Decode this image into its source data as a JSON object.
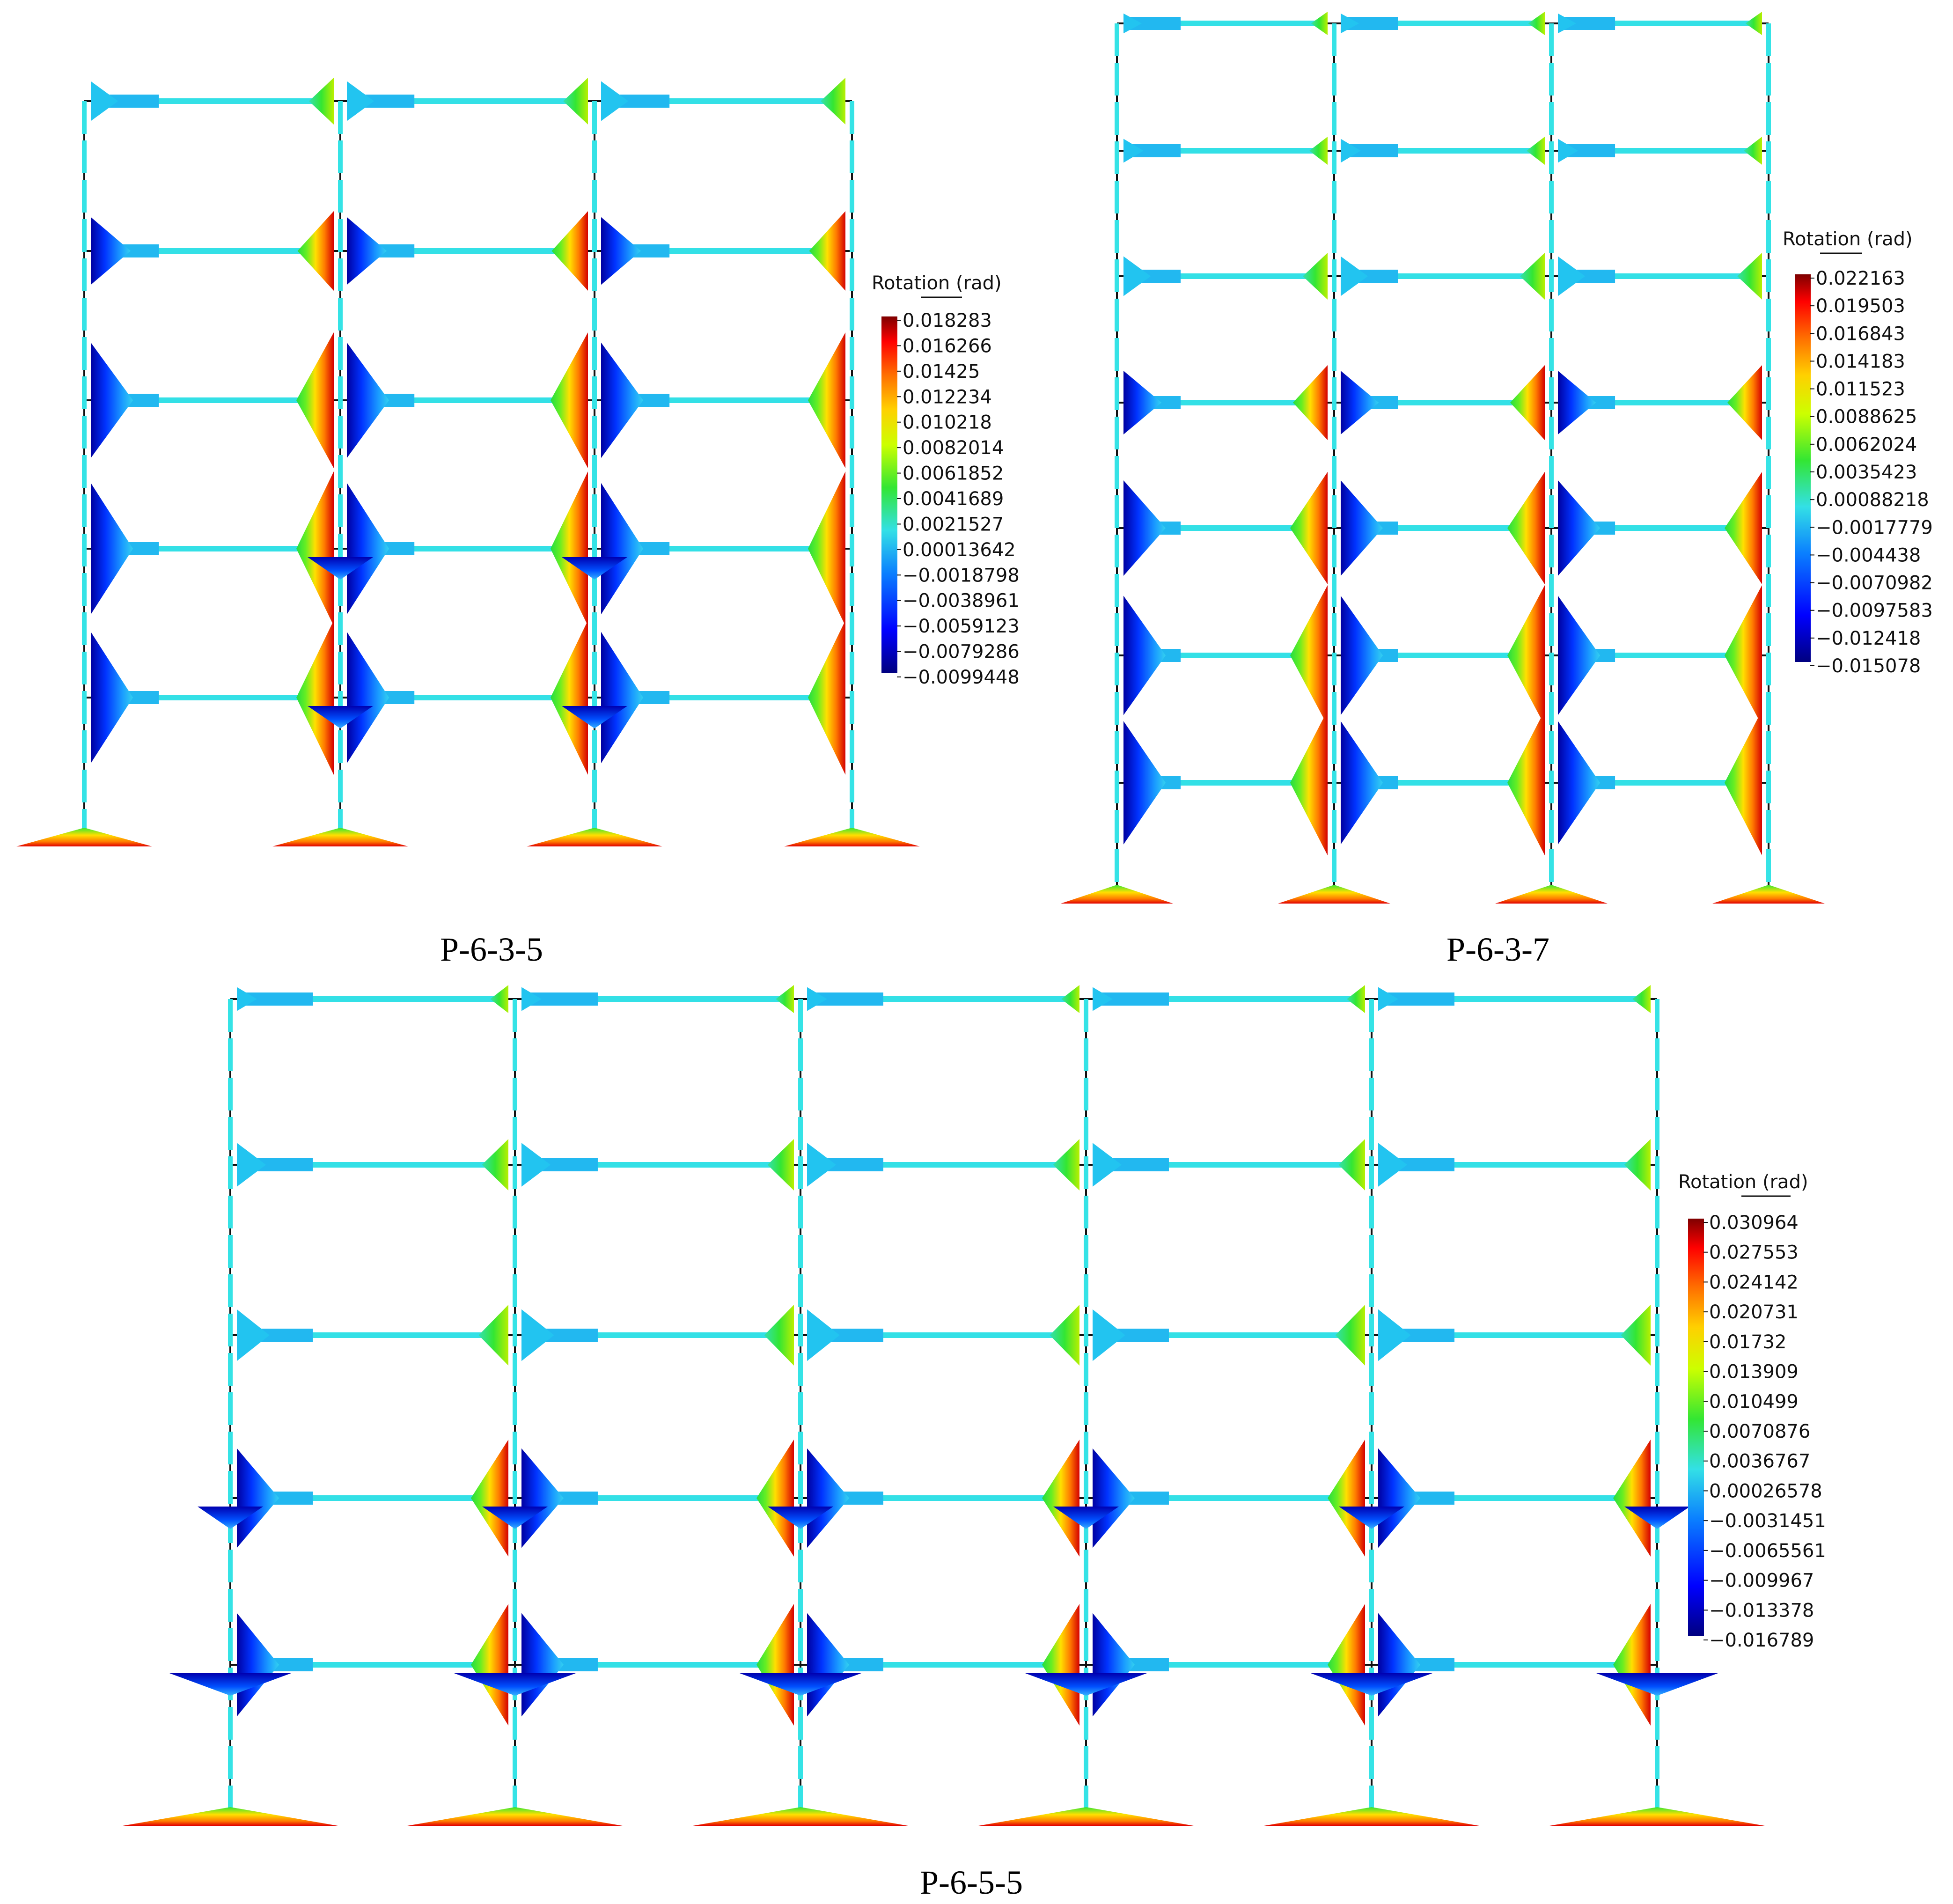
{
  "colors": {
    "frame": "#111111",
    "near_zero": "#35e3e6",
    "colormap": [
      "#00007f",
      "#0000ff",
      "#0a7fff",
      "#33e0e6",
      "#33e633",
      "#ccff00",
      "#ffd000",
      "#ff6a00",
      "#ff0000",
      "#7f0000"
    ]
  },
  "panels": [
    {
      "caption": "P-6-3-5",
      "legend": {
        "title": "Rotation (rad)",
        "values": [
          "0.018283",
          "0.016266",
          "0.01425",
          "0.012234",
          "0.010218",
          "0.0082014",
          "0.0061852",
          "0.0041689",
          "0.0021527",
          "0.00013642",
          "−0.0018798",
          "−0.0038961",
          "−0.0059123",
          "−0.0079286",
          "−0.0099448"
        ]
      },
      "bays": 3,
      "stories": 5
    },
    {
      "caption": "P-6-3-7",
      "legend": {
        "title": "Rotation (rad)",
        "values": [
          "0.022163",
          "0.019503",
          "0.016843",
          "0.014183",
          "0.011523",
          "0.0088625",
          "0.0062024",
          "0.0035423",
          "0.00088218",
          "−0.0017779",
          "−0.004438",
          "−0.0070982",
          "−0.0097583",
          "−0.012418",
          "−0.015078"
        ]
      },
      "bays": 3,
      "stories": 7
    },
    {
      "caption": "P-6-5-5",
      "legend": {
        "title": "Rotation (rad)",
        "values": [
          "0.030964",
          "0.027553",
          "0.024142",
          "0.020731",
          "0.01732",
          "0.013909",
          "0.010499",
          "0.0070876",
          "0.0036767",
          "0.00026578",
          "−0.0031451",
          "−0.0065561",
          "−0.009967",
          "−0.013378",
          "−0.016789"
        ]
      },
      "bays": 5,
      "stories": 5
    }
  ]
}
